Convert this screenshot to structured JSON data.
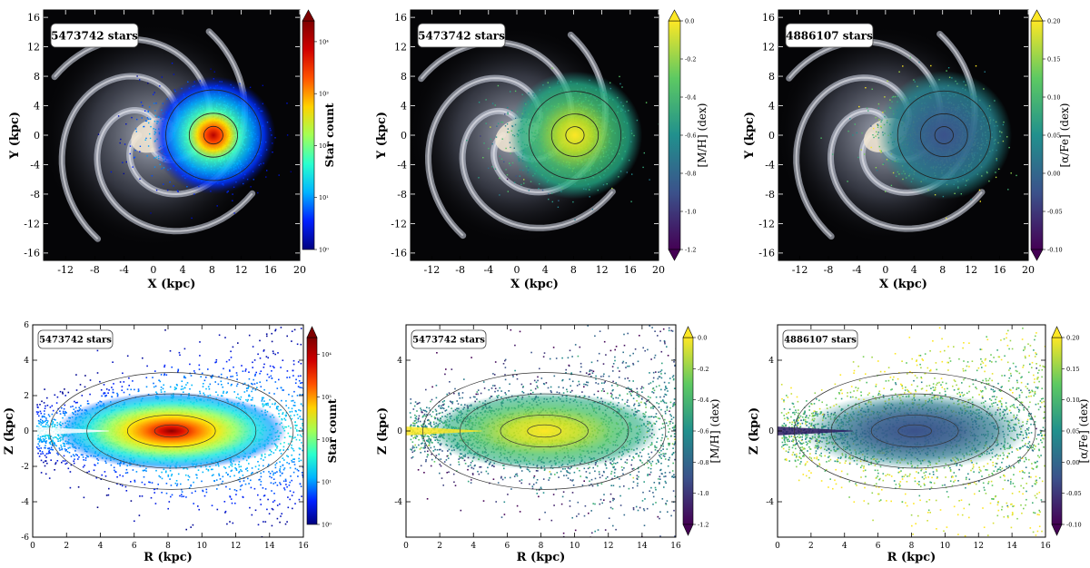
{
  "figure": {
    "title": ""
  },
  "chart_data": [
    {
      "id": "p1",
      "type": "heatmap",
      "panel": "top-left",
      "annotation": "5473742 stars",
      "xlabel": "X (kpc)",
      "ylabel": "Y (kpc)",
      "xlim": [
        -15,
        20
      ],
      "ylim": [
        -17,
        17
      ],
      "xticks": [
        -12,
        -8,
        -4,
        0,
        4,
        8,
        12,
        16,
        20
      ],
      "yticks": [
        -16,
        -12,
        -8,
        -4,
        0,
        4,
        8,
        12,
        16
      ],
      "colorbar": {
        "label": "Star count",
        "scale": "log",
        "ticks": [
          "10⁰",
          "10¹",
          "10²",
          "10³",
          "10⁴"
        ],
        "extend": "max",
        "colormap": [
          "#00007f",
          "#0020ff",
          "#00b4ff",
          "#29ffce",
          "#a2ff55",
          "#ffd200",
          "#ff5200",
          "#d00000",
          "#7f0000"
        ]
      },
      "background": "milky-way-spiral",
      "center": {
        "x": 8.2,
        "y": 0
      }
    },
    {
      "id": "p2",
      "type": "heatmap",
      "panel": "top-center",
      "annotation": "5473742 stars",
      "xlabel": "X (kpc)",
      "ylabel": "Y (kpc)",
      "xlim": [
        -15,
        20
      ],
      "ylim": [
        -17,
        17
      ],
      "xticks": [
        -12,
        -8,
        -4,
        0,
        4,
        8,
        12,
        16,
        20
      ],
      "yticks": [
        -16,
        -12,
        -8,
        -4,
        0,
        4,
        8,
        12,
        16
      ],
      "colorbar": {
        "label": "[M/H] (dex)",
        "scale": "linear",
        "range": [
          -1.2,
          0.0
        ],
        "ticks": [
          "-1.2",
          "-1.0",
          "-0.8",
          "-0.6",
          "-0.4",
          "-0.2",
          "0.0"
        ],
        "extend": "both",
        "colormap": [
          "#440154",
          "#3b528b",
          "#21908d",
          "#5dc962",
          "#fde725"
        ]
      },
      "background": "milky-way-spiral",
      "center": {
        "x": 8.2,
        "y": 0
      }
    },
    {
      "id": "p3",
      "type": "heatmap",
      "panel": "top-right",
      "annotation": "4886107 stars",
      "xlabel": "X (kpc)",
      "ylabel": "Y (kpc)",
      "xlim": [
        -15,
        20
      ],
      "ylim": [
        -17,
        17
      ],
      "xticks": [
        -12,
        -8,
        -4,
        0,
        4,
        8,
        12,
        16,
        20
      ],
      "yticks": [
        -16,
        -12,
        -8,
        -4,
        0,
        4,
        8,
        12,
        16
      ],
      "colorbar": {
        "label": "[α/Fe] (dex)",
        "scale": "linear",
        "range": [
          -0.1,
          0.2
        ],
        "ticks": [
          "-0.10",
          "-0.05",
          "0.00",
          "0.05",
          "0.10",
          "0.15",
          "0.20"
        ],
        "extend": "both",
        "colormap": [
          "#440154",
          "#3b528b",
          "#21908d",
          "#5dc962",
          "#fde725"
        ]
      },
      "background": "milky-way-spiral",
      "center": {
        "x": 8.2,
        "y": 0
      }
    },
    {
      "id": "p4",
      "type": "heatmap",
      "panel": "bottom-left",
      "annotation": "5473742 stars",
      "xlabel": "R (kpc)",
      "ylabel": "Z (kpc)",
      "xlim": [
        0,
        16
      ],
      "ylim": [
        -6,
        6
      ],
      "xticks": [
        0,
        2,
        4,
        6,
        8,
        10,
        12,
        14,
        16
      ],
      "yticks": [
        -6,
        -4,
        -2,
        0,
        2,
        4,
        6
      ],
      "colorbar": {
        "label": "Star count",
        "scale": "log",
        "ticks": [
          "10⁰",
          "10¹",
          "10²",
          "10³",
          "10⁴"
        ],
        "extend": "max",
        "colormap": [
          "#00007f",
          "#0020ff",
          "#00b4ff",
          "#29ffce",
          "#a2ff55",
          "#ffd200",
          "#ff5200",
          "#d00000",
          "#7f0000"
        ]
      },
      "center": {
        "x": 8.2,
        "y": 0
      }
    },
    {
      "id": "p5",
      "type": "heatmap",
      "panel": "bottom-center",
      "annotation": "5473742 stars",
      "xlabel": "R (kpc)",
      "ylabel": "Z (kpc)",
      "xlim": [
        0,
        16
      ],
      "ylim": [
        -6,
        6
      ],
      "xticks": [
        0,
        2,
        4,
        6,
        8,
        10,
        12,
        14,
        16
      ],
      "yticks": [
        -4,
        0,
        4
      ],
      "colorbar": {
        "label": "[M/H] (dex)",
        "scale": "linear",
        "range": [
          -1.2,
          0.0
        ],
        "ticks": [
          "-1.2",
          "-1.0",
          "-0.8",
          "-0.6",
          "-0.4",
          "-0.2",
          "0.0"
        ],
        "extend": "both",
        "colormap": [
          "#440154",
          "#3b528b",
          "#21908d",
          "#5dc962",
          "#fde725"
        ]
      },
      "center": {
        "x": 8.2,
        "y": 0
      }
    },
    {
      "id": "p6",
      "type": "heatmap",
      "panel": "bottom-right",
      "annotation": "4886107 stars",
      "xlabel": "R (kpc)",
      "ylabel": "Z (kpc)",
      "xlim": [
        0,
        16
      ],
      "ylim": [
        -6,
        6
      ],
      "xticks": [
        0,
        2,
        4,
        6,
        8,
        10,
        12,
        14,
        16
      ],
      "yticks": [
        -4,
        0,
        4
      ],
      "colorbar": {
        "label": "[α/Fe] (dex)",
        "scale": "linear",
        "range": [
          -0.1,
          0.2
        ],
        "ticks": [
          "-0.10",
          "-0.05",
          "0.00",
          "0.05",
          "0.10",
          "0.15",
          "0.20"
        ],
        "extend": "both",
        "colormap": [
          "#440154",
          "#3b528b",
          "#21908d",
          "#5dc962",
          "#fde725"
        ]
      },
      "center": {
        "x": 8.2,
        "y": 0
      }
    }
  ]
}
